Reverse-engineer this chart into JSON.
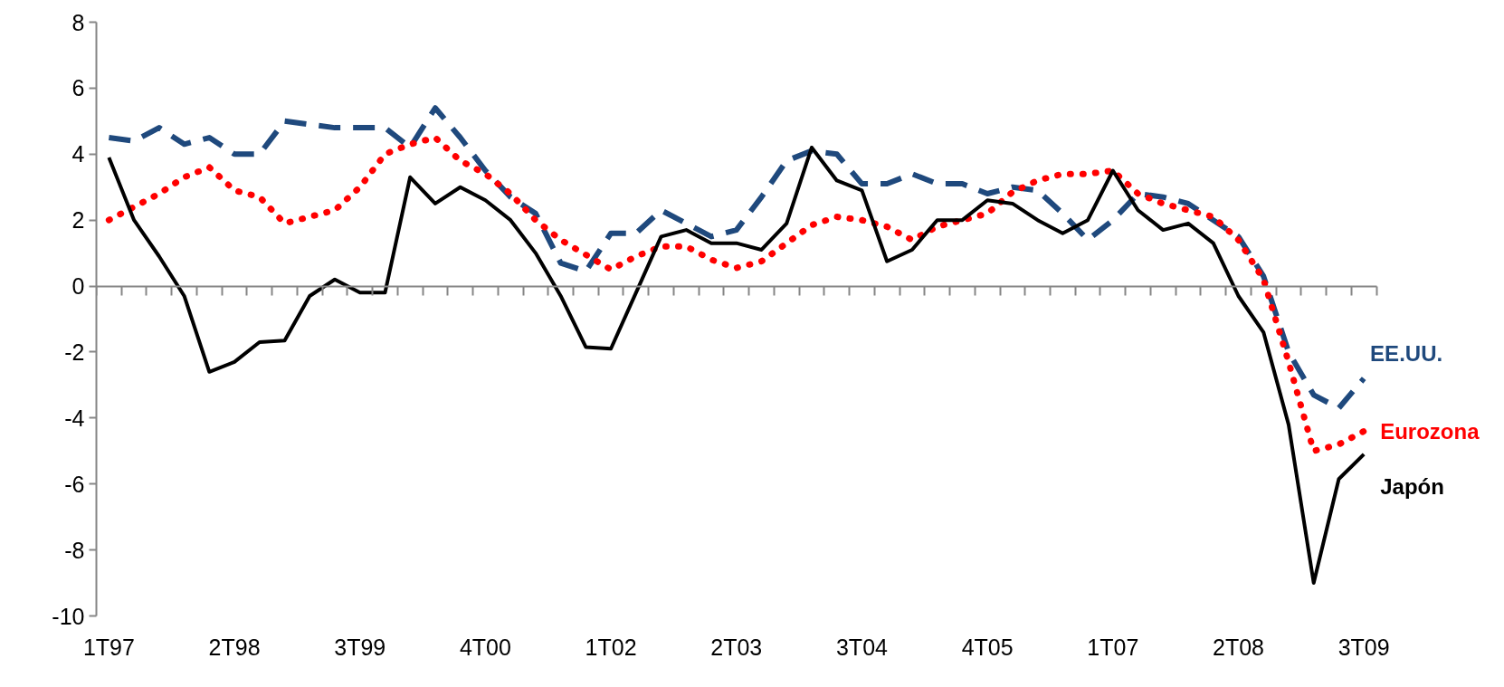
{
  "chart_data": {
    "type": "line",
    "categories": [
      "1T97",
      null,
      null,
      null,
      null,
      "2T98",
      null,
      null,
      null,
      null,
      "3T99",
      null,
      null,
      null,
      null,
      "4T00",
      null,
      null,
      null,
      null,
      "1T02",
      null,
      null,
      null,
      null,
      "2T03",
      null,
      null,
      null,
      null,
      "3T04",
      null,
      null,
      null,
      null,
      "4T05",
      null,
      null,
      null,
      null,
      "1T07",
      null,
      null,
      null,
      null,
      "2T08",
      null,
      null,
      null,
      null,
      "3T09"
    ],
    "series": [
      {
        "name": "EE.UU.",
        "color": "#1f497d",
        "line_style": "dashed",
        "values": [
          4.5,
          4.4,
          4.8,
          4.3,
          4.5,
          4.0,
          4.0,
          5.0,
          4.9,
          4.8,
          4.8,
          4.8,
          4.2,
          5.4,
          4.5,
          3.5,
          2.7,
          2.2,
          0.7,
          0.45,
          1.6,
          1.6,
          2.3,
          1.9,
          1.5,
          1.7,
          2.7,
          3.8,
          4.1,
          4.0,
          3.1,
          3.1,
          3.4,
          3.1,
          3.1,
          2.8,
          3.0,
          2.9,
          2.2,
          1.4,
          2.0,
          2.8,
          2.7,
          2.5,
          2.0,
          1.5,
          0.3,
          -2.0,
          -3.3,
          -3.7,
          -2.8
        ]
      },
      {
        "name": "Eurozona",
        "color": "#ff0000",
        "line_style": "dotted",
        "values": [
          2.0,
          2.4,
          2.8,
          3.3,
          3.6,
          2.9,
          2.7,
          1.9,
          2.1,
          2.3,
          3.0,
          4.0,
          4.3,
          4.5,
          3.8,
          3.4,
          2.8,
          2.0,
          1.4,
          0.95,
          0.5,
          0.9,
          1.2,
          1.2,
          0.8,
          0.55,
          0.75,
          1.3,
          1.85,
          2.1,
          2.0,
          1.8,
          1.4,
          1.8,
          2.0,
          2.2,
          2.85,
          3.2,
          3.4,
          3.4,
          3.5,
          2.8,
          2.5,
          2.3,
          2.1,
          1.4,
          0.2,
          -2.3,
          -5.0,
          -4.8,
          -4.4
        ]
      },
      {
        "name": "Japón",
        "color": "#000000",
        "line_style": "solid",
        "values": [
          3.9,
          2.0,
          0.9,
          -0.3,
          -2.6,
          -2.3,
          -1.7,
          -1.65,
          -0.3,
          0.2,
          -0.2,
          -0.2,
          3.3,
          2.5,
          3.0,
          2.6,
          2.0,
          1.0,
          -0.3,
          -1.85,
          -1.9,
          -0.2,
          1.5,
          1.7,
          1.3,
          1.3,
          1.1,
          1.9,
          4.2,
          3.2,
          2.9,
          0.75,
          1.1,
          2.0,
          2.0,
          2.6,
          2.5,
          2.0,
          1.6,
          2.0,
          3.5,
          2.3,
          1.7,
          1.9,
          1.3,
          -0.3,
          -1.4,
          -4.2,
          -9.0,
          -5.85,
          -5.1
        ]
      }
    ],
    "ylim": [
      -10,
      8
    ],
    "yticks": [
      -10,
      -8,
      -6,
      -4,
      -2,
      0,
      2,
      4,
      6,
      8
    ]
  }
}
